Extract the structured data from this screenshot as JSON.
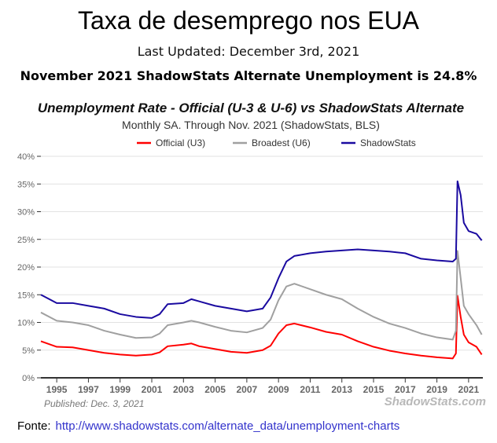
{
  "header": {
    "title": "Taxa de desemprego nos EUA",
    "updated": "Last Updated: December 3rd, 2021",
    "headline": "November 2021 ShadowStats Alternate Unemployment is 24.8%"
  },
  "source": {
    "label": "Fonte:",
    "url": "http://www.shadowstats.com/alternate_data/unemployment-charts"
  },
  "chart_data": {
    "type": "line",
    "title": "Unemployment Rate - Official (U-3 & U-6) vs ShadowStats Alternate",
    "subtitle": "Monthly SA. Through Nov. 2021  (ShadowStats, BLS)",
    "published": "Published: Dec. 3, 2021",
    "watermark": "ShadowStats.com",
    "xlim": [
      1994,
      2021.9
    ],
    "ylim": [
      0,
      40
    ],
    "yticks": [
      "0%",
      "5%",
      "10%",
      "15%",
      "20%",
      "25%",
      "30%",
      "35%",
      "40%"
    ],
    "xticks": [
      "1995",
      "1997",
      "1999",
      "2001",
      "2003",
      "2005",
      "2007",
      "2009",
      "2011",
      "2013",
      "2015",
      "2017",
      "2019",
      "2021"
    ],
    "grid": true,
    "legend_placement": "top-center",
    "x": [
      1994,
      1995,
      1996,
      1997,
      1998,
      1999,
      2000,
      2001,
      2001.5,
      2002,
      2003,
      2003.5,
      2004,
      2005,
      2006,
      2007,
      2008,
      2008.5,
      2009,
      2009.5,
      2010,
      2011,
      2012,
      2013,
      2014,
      2015,
      2016,
      2017,
      2018,
      2019,
      2020,
      2020.2,
      2020.3,
      2020.5,
      2020.7,
      2021,
      2021.5,
      2021.83
    ],
    "series": [
      {
        "name": "Official (U3)",
        "color": "#ff0000",
        "values": [
          6.6,
          5.6,
          5.5,
          5,
          4.5,
          4.2,
          4,
          4.2,
          4.6,
          5.7,
          6,
          6.2,
          5.7,
          5.2,
          4.7,
          4.5,
          5,
          5.8,
          8,
          9.5,
          9.8,
          9.1,
          8.3,
          7.8,
          6.6,
          5.6,
          4.9,
          4.4,
          4,
          3.7,
          3.5,
          4.4,
          14.8,
          11,
          7.8,
          6.4,
          5.6,
          4.2
        ]
      },
      {
        "name": "Broadest (U6)",
        "color": "#a0a0a0",
        "values": [
          11.8,
          10.3,
          10,
          9.5,
          8.5,
          7.8,
          7.2,
          7.3,
          8,
          9.5,
          10,
          10.3,
          10,
          9.2,
          8.5,
          8.2,
          9,
          10.5,
          14,
          16.5,
          17,
          16,
          15,
          14.2,
          12.5,
          11,
          9.8,
          9,
          8,
          7.3,
          6.9,
          8.5,
          22.9,
          18,
          13,
          11.5,
          9.5,
          7.8
        ]
      },
      {
        "name": "ShadowStats",
        "color": "#1a0aa0",
        "values": [
          15,
          13.5,
          13.5,
          13,
          12.5,
          11.5,
          11,
          10.8,
          11.5,
          13.3,
          13.5,
          14.2,
          13.8,
          13,
          12.5,
          12,
          12.5,
          14.5,
          18,
          21,
          22,
          22.5,
          22.8,
          23,
          23.2,
          23,
          22.8,
          22.5,
          21.5,
          21.2,
          21,
          21.5,
          35.5,
          33,
          28,
          26.5,
          26,
          24.8
        ]
      }
    ]
  }
}
